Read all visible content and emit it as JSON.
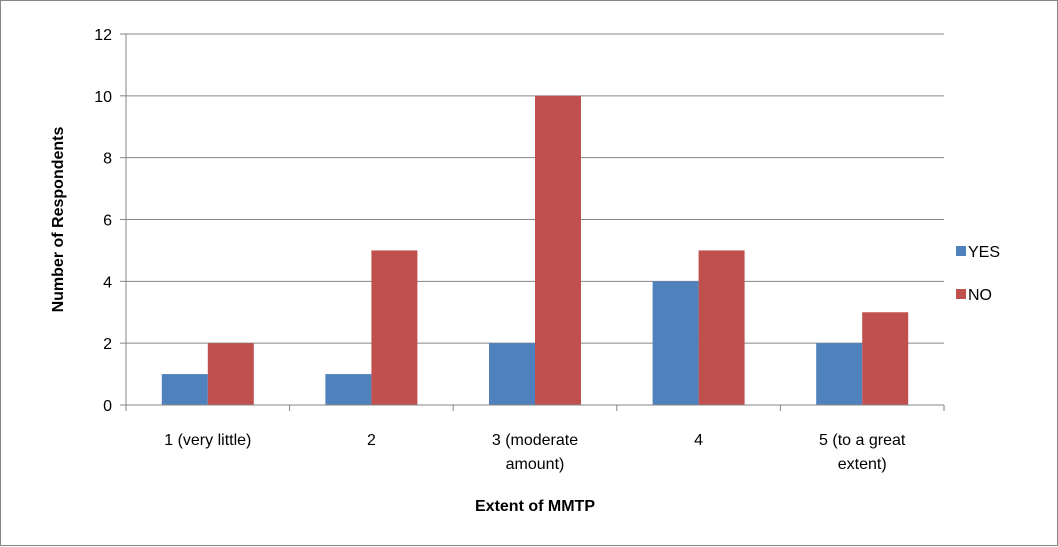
{
  "chart_data": {
    "type": "bar",
    "title": "",
    "xlabel": "Extent of MMTP",
    "ylabel": "Number of Respondents",
    "categories": [
      [
        "1 (very little)"
      ],
      [
        "2"
      ],
      [
        "3 (moderate",
        "amount)"
      ],
      [
        "4"
      ],
      [
        "5 (to a great",
        "extent)"
      ]
    ],
    "series": [
      {
        "name": "YES",
        "color": "#4F81BD",
        "values": [
          1,
          1,
          2,
          4,
          2
        ]
      },
      {
        "name": "NO",
        "color": "#C0504D",
        "values": [
          2,
          5,
          10,
          5,
          3
        ]
      }
    ],
    "ylim": [
      0,
      12
    ],
    "yticks": [
      0,
      2,
      4,
      6,
      8,
      10,
      12
    ],
    "grid": true,
    "legend_position": "right"
  }
}
